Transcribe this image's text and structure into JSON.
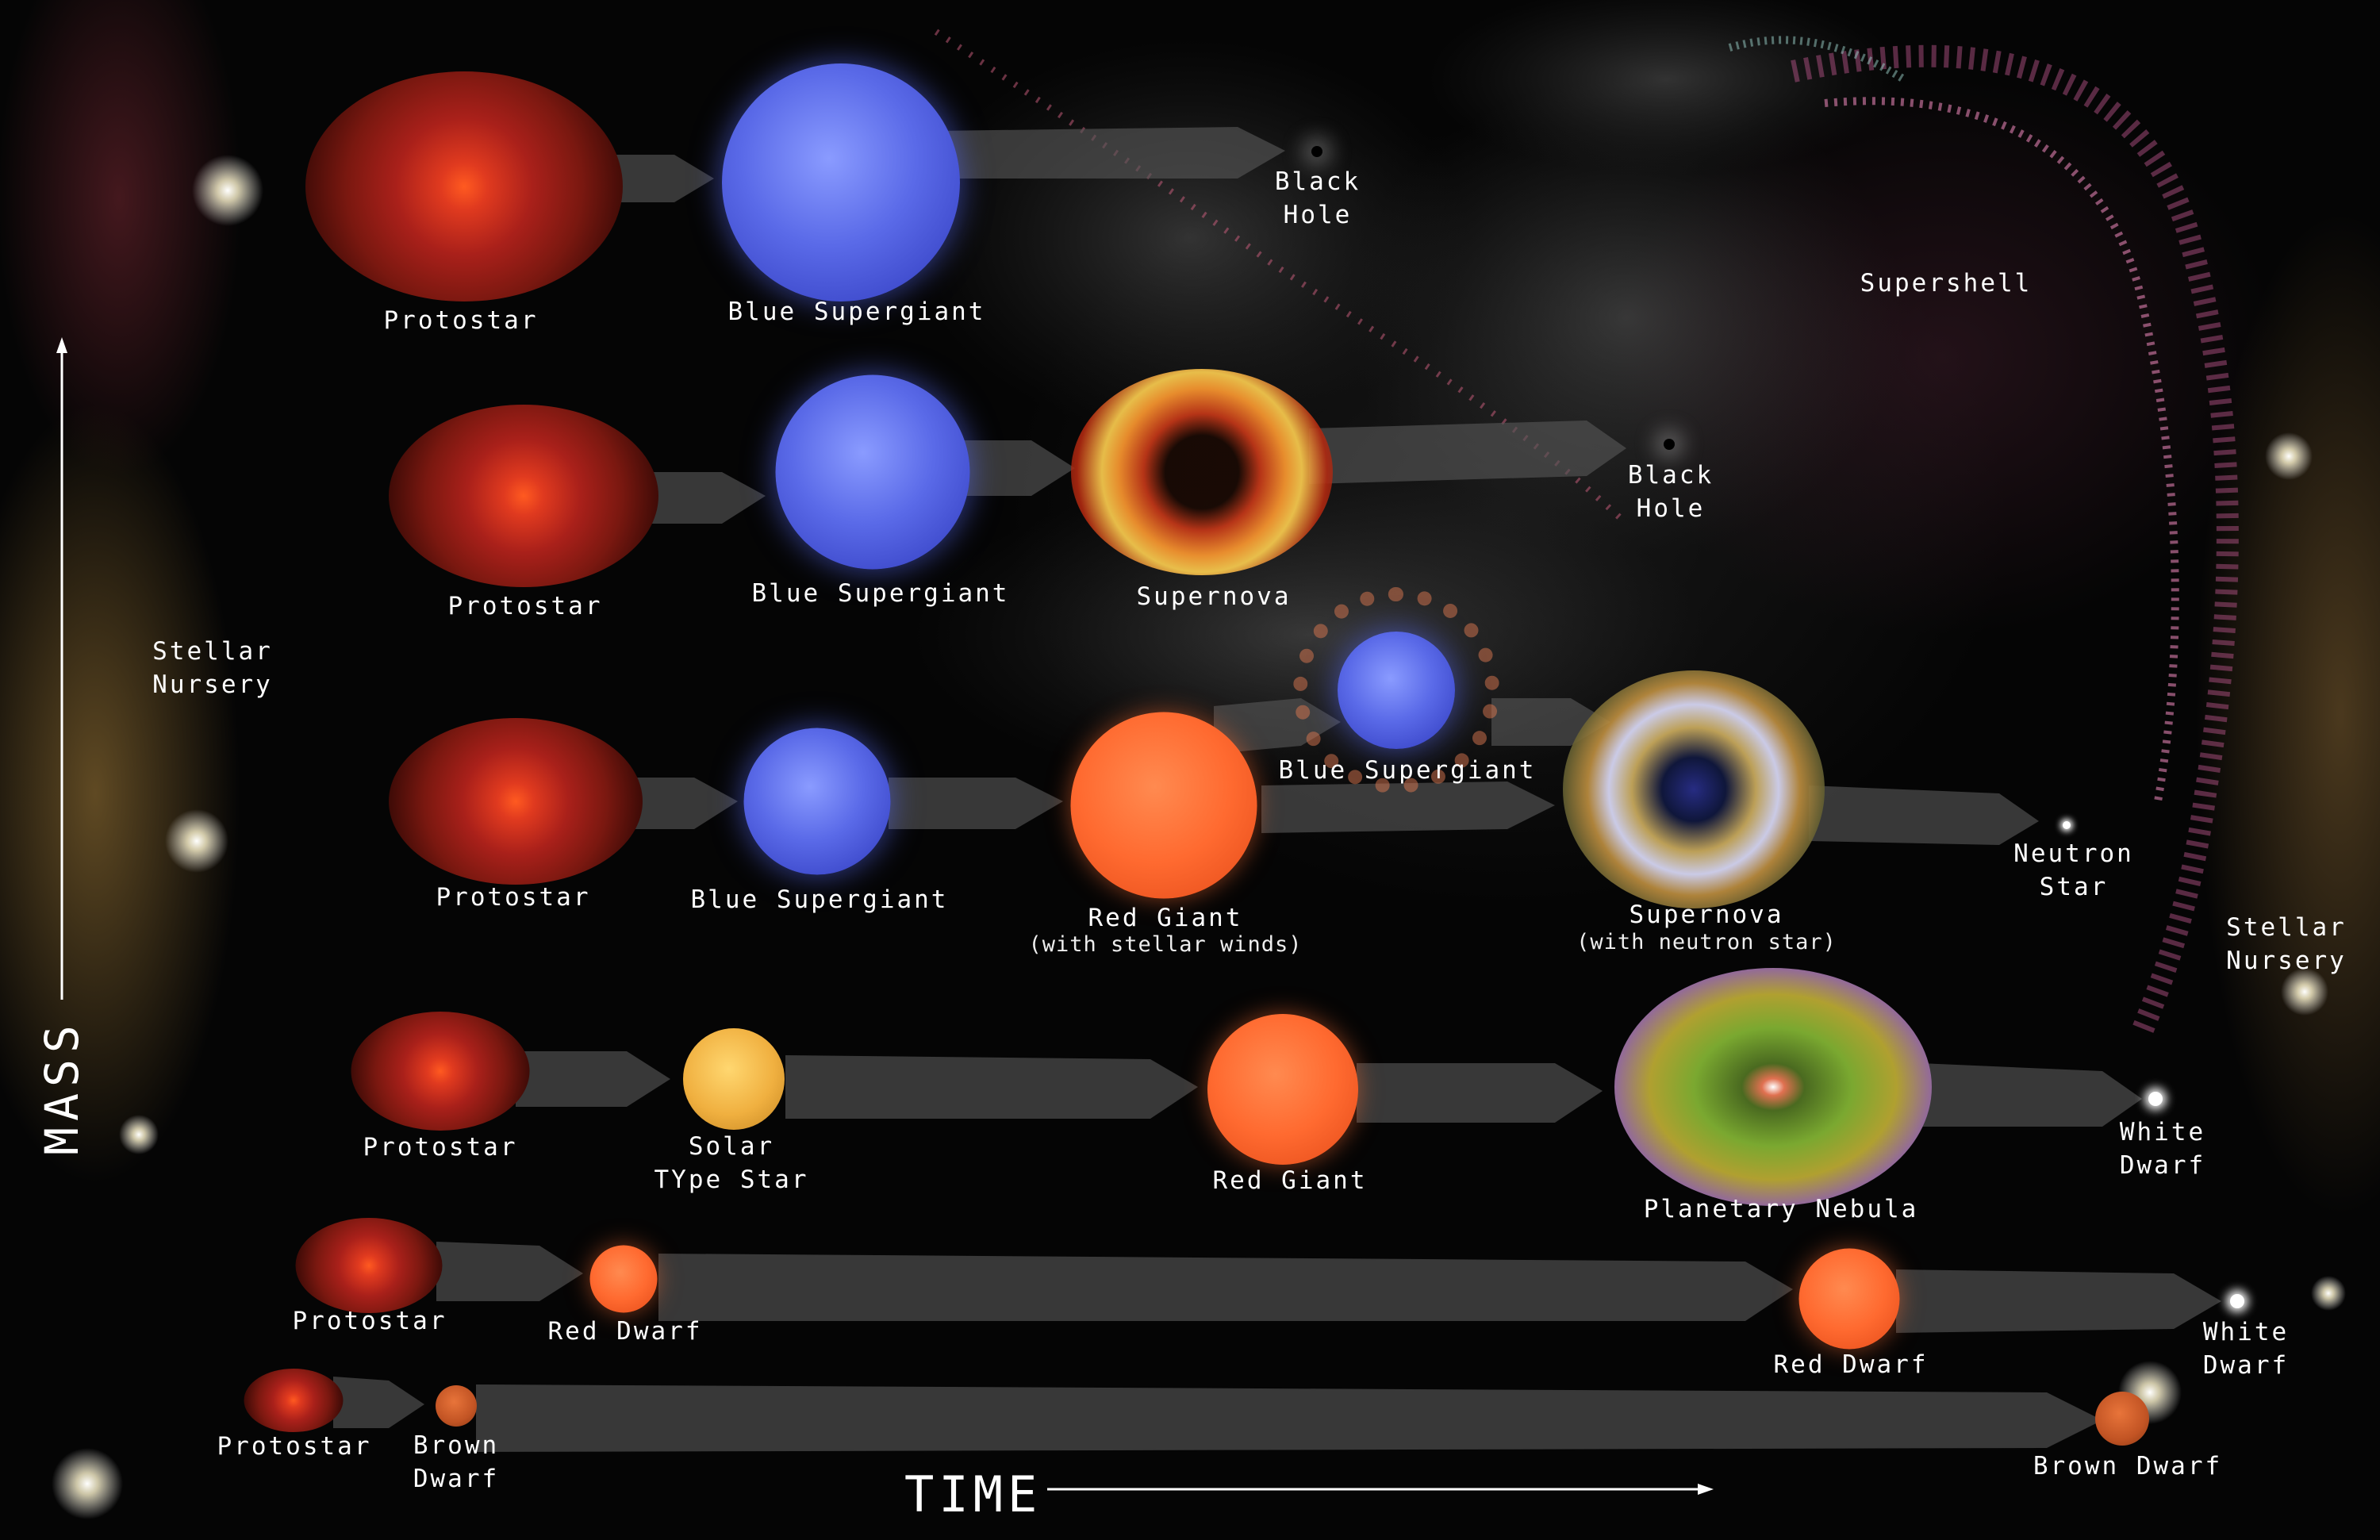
{
  "axis": {
    "mass_label": "MASS",
    "time_label": "TIME"
  },
  "regions": {
    "nursery_left": [
      "Stellar",
      "Nursery"
    ],
    "nursery_right": [
      "Stellar",
      "Nursery"
    ],
    "supershell": "Supershell"
  },
  "tracks": [
    {
      "name": "row1",
      "stages": [
        {
          "type": "protostar",
          "label": "Protostar"
        },
        {
          "type": "blue-supergiant",
          "label": "Blue Supergiant"
        },
        {
          "type": "black-hole",
          "label": "Black\nHole"
        }
      ]
    },
    {
      "name": "row2",
      "stages": [
        {
          "type": "protostar",
          "label": "Protostar"
        },
        {
          "type": "blue-supergiant",
          "label": "Blue Supergiant"
        },
        {
          "type": "supernova",
          "label": "Supernova"
        },
        {
          "type": "black-hole",
          "label": "Black\nHole"
        }
      ]
    },
    {
      "name": "row3",
      "stages": [
        {
          "type": "protostar",
          "label": "Protostar"
        },
        {
          "type": "blue-supergiant",
          "label": "Blue Supergiant"
        },
        {
          "type": "red-giant",
          "label": "Red Giant",
          "sublabel": "(with stellar winds)"
        },
        {
          "type": "blue-supergiant",
          "label": "Blue Supergiant"
        },
        {
          "type": "supernova",
          "label": "Supernova",
          "sublabel": "(with neutron star)"
        },
        {
          "type": "neutron-star",
          "label": "Neutron\nStar"
        }
      ]
    },
    {
      "name": "row4",
      "stages": [
        {
          "type": "protostar",
          "label": "Protostar"
        },
        {
          "type": "solar-type-star",
          "label": "Solar\nTYpe Star"
        },
        {
          "type": "red-giant",
          "label": "Red Giant"
        },
        {
          "type": "planetary-nebula",
          "label": "Planetary Nebula"
        },
        {
          "type": "white-dwarf",
          "label": "White\nDwarf"
        }
      ]
    },
    {
      "name": "row5",
      "stages": [
        {
          "type": "protostar",
          "label": "Protostar"
        },
        {
          "type": "red-dwarf",
          "label": "Red Dwarf"
        },
        {
          "type": "red-dwarf",
          "label": "Red Dwarf"
        },
        {
          "type": "white-dwarf",
          "label": "White\nDwarf"
        }
      ]
    },
    {
      "name": "row6",
      "stages": [
        {
          "type": "protostar",
          "label": "Protostar"
        },
        {
          "type": "brown-dwarf",
          "label": "Brown\nDwarf"
        },
        {
          "type": "brown-dwarf",
          "label": "Brown Dwarf"
        }
      ]
    }
  ],
  "colors": {
    "protostar": "#c0281c",
    "blue_supergiant": "#4a58d8",
    "red_giant": "#ff6a30",
    "solar": "#f0b040",
    "nebula_green": "#7aa830",
    "nebula_purple": "#8a5ab8",
    "arrow": "#5a5a5a"
  }
}
